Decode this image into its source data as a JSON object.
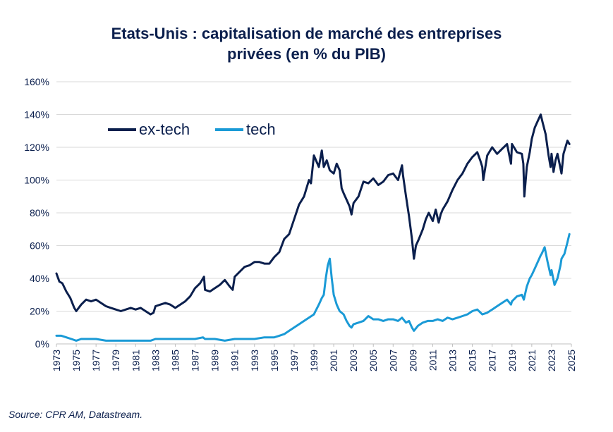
{
  "title_line1": "Etats-Unis : capitalisation de marché des entreprises",
  "title_line2": "privées (en % du PIB)",
  "source": "Source: CPR AM, Datastream.",
  "colors": {
    "extech": "#0b1f4d",
    "tech": "#1a9ad6",
    "grid": "#d9d9d9",
    "text": "#0b1f4d"
  },
  "chart_data": {
    "type": "line",
    "title": "Etats-Unis : capitalisation de marché des entreprises privées (en % du PIB)",
    "xlabel": "",
    "ylabel": "",
    "xlim": [
      1973,
      2025
    ],
    "ylim": [
      0,
      160
    ],
    "y_ticks": [
      0,
      20,
      40,
      60,
      80,
      100,
      120,
      140,
      160
    ],
    "y_tick_labels": [
      "0%",
      "20%",
      "40%",
      "60%",
      "80%",
      "100%",
      "120%",
      "140%",
      "160%"
    ],
    "x_ticks": [
      1973,
      1975,
      1977,
      1979,
      1981,
      1983,
      1985,
      1987,
      1989,
      1991,
      1993,
      1995,
      1997,
      1999,
      2001,
      2003,
      2005,
      2007,
      2009,
      2011,
      2013,
      2015,
      2017,
      2019,
      2021,
      2023,
      2025
    ],
    "x_tick_labels": [
      "1973",
      "1975",
      "1977",
      "1979",
      "1981",
      "1983",
      "1985",
      "1987",
      "1989",
      "1991",
      "1993",
      "1995",
      "1997",
      "1999",
      "2001",
      "2003",
      "2005",
      "2007",
      "2009",
      "2011",
      "2013",
      "2015",
      "2017",
      "2019",
      "2021",
      "2023",
      "2025"
    ],
    "grid": "horizontal",
    "legend_position": "top-left",
    "series": [
      {
        "name": "ex-tech",
        "x": [
          1973.0,
          1973.3,
          1973.6,
          1974.0,
          1974.4,
          1974.8,
          1975.0,
          1975.5,
          1976.0,
          1976.5,
          1977.0,
          1977.5,
          1978.0,
          1978.5,
          1979.0,
          1979.5,
          1980.0,
          1980.5,
          1981.0,
          1981.5,
          1982.0,
          1982.5,
          1982.8,
          1983.0,
          1983.5,
          1984.0,
          1984.5,
          1985.0,
          1985.5,
          1986.0,
          1986.5,
          1987.0,
          1987.5,
          1987.9,
          1988.0,
          1988.5,
          1989.0,
          1989.5,
          1990.0,
          1990.5,
          1990.8,
          1991.0,
          1991.5,
          1992.0,
          1992.5,
          1993.0,
          1993.5,
          1994.0,
          1994.5,
          1995.0,
          1995.5,
          1996.0,
          1996.5,
          1997.0,
          1997.5,
          1998.0,
          1998.5,
          1998.7,
          1999.0,
          1999.5,
          1999.8,
          2000.0,
          2000.3,
          2000.6,
          2001.0,
          2001.3,
          2001.6,
          2001.8,
          2002.0,
          2002.3,
          2002.6,
          2002.8,
          2003.0,
          2003.5,
          2004.0,
          2004.5,
          2005.0,
          2005.5,
          2006.0,
          2006.5,
          2007.0,
          2007.5,
          2007.9,
          2008.0,
          2008.3,
          2008.6,
          2008.9,
          2009.1,
          2009.3,
          2009.6,
          2010.0,
          2010.3,
          2010.6,
          2011.0,
          2011.3,
          2011.6,
          2011.8,
          2012.0,
          2012.5,
          2013.0,
          2013.5,
          2014.0,
          2014.5,
          2015.0,
          2015.5,
          2015.8,
          2016.0,
          2016.1,
          2016.5,
          2017.0,
          2017.5,
          2018.0,
          2018.5,
          2018.9,
          2019.0,
          2019.5,
          2020.0,
          2020.15,
          2020.25,
          2020.5,
          2020.8,
          2021.0,
          2021.3,
          2021.6,
          2021.9,
          2022.1,
          2022.4,
          2022.7,
          2022.9,
          2023.0,
          2023.2,
          2023.4,
          2023.6,
          2023.8,
          2024.0,
          2024.2,
          2024.4,
          2024.6,
          2024.8
        ],
        "values": [
          43,
          38,
          37,
          32,
          28,
          22,
          20,
          24,
          27,
          26,
          27,
          25,
          23,
          22,
          21,
          20,
          21,
          22,
          21,
          22,
          20,
          18,
          19,
          23,
          24,
          25,
          24,
          22,
          24,
          26,
          29,
          34,
          37,
          41,
          33,
          32,
          34,
          36,
          39,
          35,
          33,
          41,
          44,
          47,
          48,
          50,
          50,
          49,
          49,
          53,
          56,
          64,
          67,
          76,
          85,
          90,
          100,
          98,
          115,
          108,
          118,
          108,
          112,
          106,
          104,
          110,
          106,
          95,
          92,
          88,
          84,
          79,
          86,
          90,
          99,
          98,
          101,
          97,
          99,
          103,
          104,
          100,
          109,
          103,
          90,
          78,
          64,
          52,
          60,
          64,
          70,
          76,
          80,
          75,
          82,
          74,
          79,
          82,
          87,
          94,
          100,
          104,
          110,
          114,
          117,
          112,
          108,
          100,
          115,
          120,
          116,
          119,
          122,
          110,
          122,
          117,
          116,
          110,
          90,
          108,
          117,
          125,
          132,
          136,
          140,
          135,
          128,
          115,
          108,
          116,
          105,
          112,
          116,
          110,
          104,
          116,
          120,
          124,
          122
        ]
      },
      {
        "name": "tech",
        "x": [
          1973.0,
          1973.5,
          1974.0,
          1974.5,
          1975.0,
          1975.5,
          1976.0,
          1977.0,
          1978.0,
          1979.0,
          1980.0,
          1981.0,
          1982.0,
          1982.5,
          1983.0,
          1983.5,
          1984.0,
          1985.0,
          1986.0,
          1987.0,
          1987.8,
          1988.0,
          1989.0,
          1990.0,
          1991.0,
          1992.0,
          1993.0,
          1994.0,
          1994.5,
          1995.0,
          1995.5,
          1996.0,
          1996.5,
          1997.0,
          1997.5,
          1998.0,
          1998.5,
          1999.0,
          1999.5,
          1999.8,
          2000.0,
          2000.2,
          2000.4,
          2000.6,
          2000.8,
          2001.0,
          2001.3,
          2001.6,
          2002.0,
          2002.3,
          2002.6,
          2002.8,
          2003.0,
          2003.5,
          2004.0,
          2004.5,
          2005.0,
          2005.5,
          2006.0,
          2006.5,
          2007.0,
          2007.5,
          2007.9,
          2008.3,
          2008.6,
          2008.9,
          2009.1,
          2009.5,
          2010.0,
          2010.5,
          2011.0,
          2011.5,
          2012.0,
          2012.5,
          2013.0,
          2013.5,
          2014.0,
          2014.5,
          2015.0,
          2015.5,
          2016.0,
          2016.5,
          2017.0,
          2017.5,
          2018.0,
          2018.5,
          2018.9,
          2019.0,
          2019.5,
          2020.0,
          2020.2,
          2020.5,
          2020.8,
          2021.0,
          2021.3,
          2021.6,
          2021.9,
          2022.0,
          2022.3,
          2022.6,
          2022.9,
          2023.0,
          2023.3,
          2023.6,
          2023.9,
          2024.0,
          2024.3,
          2024.6,
          2024.8
        ],
        "values": [
          5,
          5,
          4,
          3,
          2,
          3,
          3,
          3,
          2,
          2,
          2,
          2,
          2,
          2,
          3,
          3,
          3,
          3,
          3,
          3,
          4,
          3,
          3,
          2,
          3,
          3,
          3,
          4,
          4,
          4,
          5,
          6,
          8,
          10,
          12,
          14,
          16,
          18,
          24,
          28,
          30,
          40,
          48,
          52,
          40,
          30,
          24,
          20,
          18,
          14,
          11,
          10,
          12,
          13,
          14,
          17,
          15,
          15,
          14,
          15,
          15,
          14,
          16,
          13,
          14,
          10,
          8,
          11,
          13,
          14,
          14,
          15,
          14,
          16,
          15,
          16,
          17,
          18,
          20,
          21,
          18,
          19,
          21,
          23,
          25,
          27,
          24,
          26,
          29,
          30,
          27,
          35,
          40,
          42,
          46,
          50,
          54,
          55,
          59,
          50,
          42,
          45,
          36,
          40,
          48,
          52,
          55,
          62,
          67
        ]
      }
    ]
  }
}
